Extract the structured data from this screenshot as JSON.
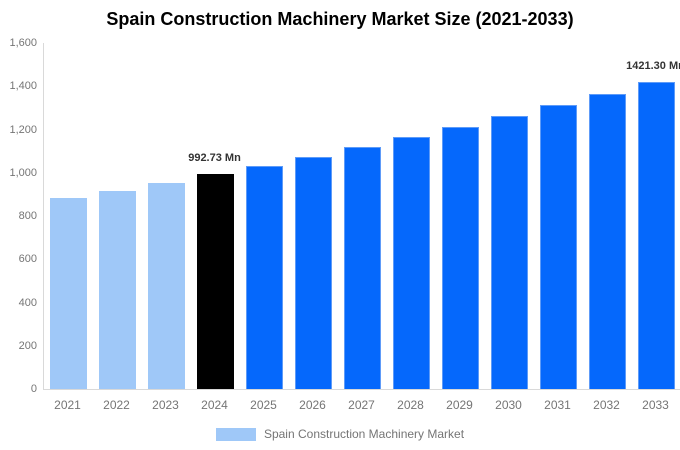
{
  "title": "Spain Construction Machinery Market Size (2021-2033)",
  "legend": {
    "label": "Spain Construction Machinery Market",
    "swatch_color": "#9fc8f8"
  },
  "colors": {
    "bar": {
      "light": "#9fc8f8",
      "highlight": "#000000",
      "primary": "#0568fc"
    },
    "primary_border": "#5e9bf8",
    "axis_line": "#d9d9d9",
    "axis_text": "#757575",
    "data_label_text": "#333333",
    "title_text": "#000000"
  },
  "chart_data": {
    "type": "bar",
    "title": "Spain Construction Machinery Market Size (2021-2033)",
    "categories": [
      "2021",
      "2022",
      "2023",
      "2024",
      "2025",
      "2026",
      "2027",
      "2028",
      "2029",
      "2030",
      "2031",
      "2032",
      "2033"
    ],
    "series": [
      {
        "name": "Spain Construction Machinery Market",
        "values": [
          881,
          917,
          954,
          992.73,
          1033,
          1075,
          1119,
          1165,
          1212,
          1261,
          1313,
          1366,
          1421.3
        ]
      }
    ],
    "unit": "Mn",
    "xlabel": "",
    "ylabel": "",
    "ylim": [
      0,
      1600
    ],
    "ytick_interval": 200,
    "ytick_labels": [
      "0",
      "200",
      "400",
      "600",
      "800",
      "1,000",
      "1,200",
      "1,400",
      "1,600"
    ],
    "grid": false,
    "legend_position": "bottom",
    "bar_colors": [
      "light",
      "light",
      "light",
      "highlight",
      "primary",
      "primary",
      "primary",
      "primary",
      "primary",
      "primary",
      "primary",
      "primary",
      "primary"
    ],
    "data_labels": [
      {
        "index": 3,
        "text": "992.73 Mn"
      },
      {
        "index": 12,
        "text": "1421.30 Mn"
      }
    ]
  }
}
